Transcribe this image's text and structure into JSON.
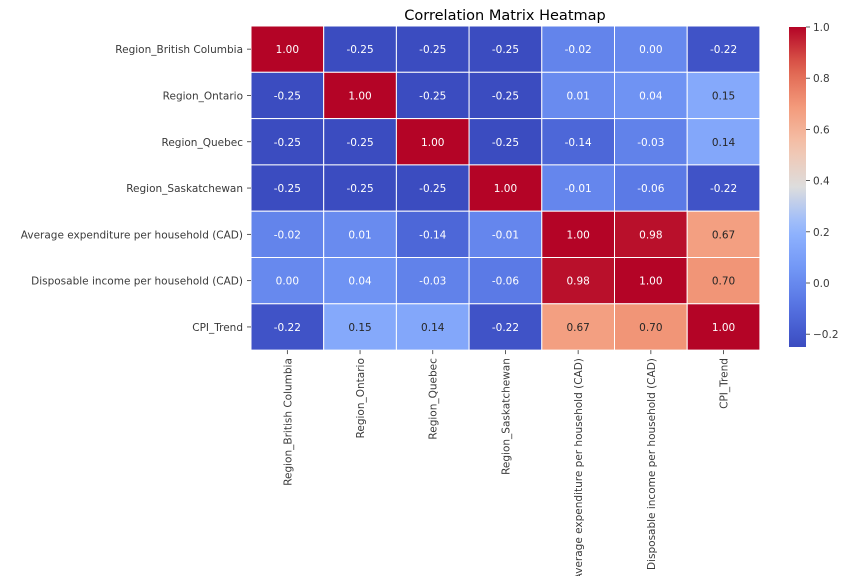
{
  "chart_data": {
    "type": "heatmap",
    "title": "Correlation Matrix Heatmap",
    "row_labels": [
      "Region_British Columbia",
      "Region_Ontario",
      "Region_Quebec",
      "Region_Saskatchewan",
      "Average expenditure per household (CAD)",
      "Disposable income per household (CAD)",
      "CPI_Trend"
    ],
    "column_labels": [
      "Region_British Columbia",
      "Region_Ontario",
      "Region_Quebec",
      "Region_Saskatchewan",
      "Average expenditure per household (CAD)",
      "Disposable income per household (CAD)",
      "CPI_Trend"
    ],
    "values": [
      [
        1.0,
        -0.25,
        -0.25,
        -0.25,
        -0.02,
        0.0,
        -0.22
      ],
      [
        -0.25,
        1.0,
        -0.25,
        -0.25,
        0.01,
        0.04,
        0.15
      ],
      [
        -0.25,
        -0.25,
        1.0,
        -0.25,
        -0.14,
        -0.03,
        0.14
      ],
      [
        -0.25,
        -0.25,
        -0.25,
        1.0,
        -0.01,
        -0.06,
        -0.22
      ],
      [
        -0.02,
        0.01,
        -0.14,
        -0.01,
        1.0,
        0.98,
        0.67
      ],
      [
        0.0,
        0.04,
        -0.03,
        -0.06,
        0.98,
        1.0,
        0.7
      ],
      [
        -0.22,
        0.15,
        0.14,
        -0.22,
        0.67,
        0.7,
        1.0
      ]
    ],
    "value_range": [
      -0.25,
      1.0
    ],
    "colormap": "coolwarm",
    "colorbar_ticks": [
      1.0,
      0.8,
      0.6,
      0.4,
      0.2,
      0.0,
      -0.2
    ],
    "colorbar_tick_labels": [
      "1.0",
      "0.8",
      "0.6",
      "0.4",
      "0.2",
      "0.0",
      "−0.2"
    ],
    "colorbar_position": "right",
    "cell_border_color": "#ffffff",
    "text_color_dark": "#262626",
    "text_color_light": "#ffffff"
  }
}
